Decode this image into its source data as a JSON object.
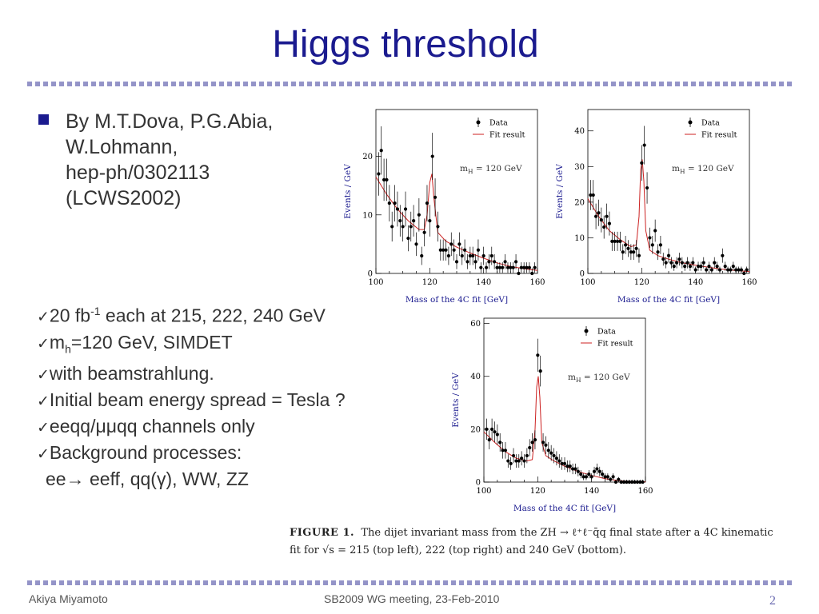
{
  "slide": {
    "title": "Higgs threshold",
    "bullet_lines": [
      "By M.T.Dova, P.G.Abia,",
      "W.Lohmann,",
      "hep-ph/0302113",
      "(LCWS2002)"
    ],
    "checklist": [
      {
        "before": "20 fb",
        "sup": "-1",
        "after": " each at 215, 222, 240 GeV"
      },
      {
        "before": "m",
        "sub": "h",
        "after": "=120 GeV, SIMDET"
      },
      {
        "text": "with beamstrahlung."
      },
      {
        "text": "Initial beam energy spread = Tesla ?"
      },
      {
        "text": "eeqq/μμqq channels only"
      },
      {
        "text": "Background processes:"
      }
    ],
    "processes_line": {
      "lead": "ee",
      "arrow": "→",
      "rest": " eeff, qq(γ), WW, ZZ"
    },
    "check_glyph": "✓"
  },
  "caption": {
    "label": "FIGURE 1.",
    "line1_rest": "The dijet invariant mass from the ZH → ℓ⁺ℓ⁻q̄q final state after a 4C kinematic",
    "line2": "fit for √s = 215 (top left), 222 (top right) and 240 GeV (bottom)."
  },
  "footer": {
    "author": "Akiya Miyamoto",
    "meeting": "SB2009 WG meeting, 23-Feb-2010",
    "page": "2"
  },
  "colors": {
    "title": "#1b1b8f",
    "axis_label": "#1b1b8f",
    "fit": "#cc2222",
    "dots": "#9494c8"
  },
  "chart_data": [
    {
      "type": "scatter",
      "xlabel": "Mass of the 4C fit  [GeV]",
      "ylabel": "Events / GeV",
      "xlim": [
        100,
        160
      ],
      "ylim": [
        0,
        28
      ],
      "xticks": [
        100,
        120,
        140,
        160
      ],
      "yticks": [
        0,
        10,
        20
      ],
      "annotation": "m_H = 120 GeV",
      "legend": [
        "Data",
        "Fit result"
      ],
      "series": [
        {
          "name": "Data",
          "x": [
            101,
            102,
            103,
            104,
            105,
            106,
            107,
            108,
            109,
            110,
            111,
            112,
            113,
            114,
            115,
            116,
            117,
            118,
            119,
            120,
            121,
            122,
            123,
            124,
            125,
            126,
            127,
            128,
            129,
            130,
            131,
            132,
            133,
            134,
            135,
            136,
            137,
            138,
            139,
            140,
            141,
            142,
            143,
            144,
            145,
            146,
            147,
            148,
            149,
            150,
            151,
            152,
            153,
            154,
            155,
            156,
            157,
            158,
            159
          ],
          "y": [
            17,
            21,
            16,
            16,
            12,
            8,
            12,
            11,
            9,
            8,
            11,
            6,
            8,
            9,
            5,
            10,
            3,
            7,
            12,
            9,
            20,
            13,
            8,
            4,
            4,
            4,
            3,
            5,
            4,
            2,
            5,
            3,
            4,
            2,
            3,
            3,
            2,
            4,
            1,
            3,
            1,
            2,
            3,
            2,
            1,
            1,
            1,
            2,
            1,
            1,
            1,
            2,
            0,
            1,
            1,
            1,
            1,
            0,
            1
          ]
        },
        {
          "name": "Fit result",
          "x": [
            100,
            104,
            108,
            112,
            116,
            118,
            119,
            120,
            120.8,
            121.5,
            123,
            126,
            130,
            135,
            140,
            145,
            150,
            155,
            160
          ],
          "y": [
            16.5,
            13.5,
            11,
            9,
            7.5,
            7.5,
            10,
            15.5,
            17,
            13,
            7,
            5.5,
            4.5,
            3.5,
            2.6,
            1.8,
            1.2,
            0.8,
            0.5
          ]
        }
      ]
    },
    {
      "type": "scatter",
      "xlabel": "Mass of the 4C fit  [GeV]",
      "ylabel": "Events / GeV",
      "xlim": [
        100,
        160
      ],
      "ylim": [
        0,
        46
      ],
      "xticks": [
        100,
        120,
        140,
        160
      ],
      "yticks": [
        0,
        10,
        20,
        30,
        40
      ],
      "annotation": "m_H = 120 GeV",
      "legend": [
        "Data",
        "Fit result"
      ],
      "series": [
        {
          "name": "Data",
          "x": [
            101,
            102,
            103,
            104,
            105,
            106,
            107,
            108,
            109,
            110,
            111,
            112,
            113,
            114,
            115,
            116,
            117,
            118,
            119,
            120,
            121,
            122,
            123,
            124,
            125,
            126,
            127,
            128,
            129,
            130,
            131,
            132,
            133,
            134,
            135,
            136,
            137,
            138,
            139,
            140,
            141,
            142,
            143,
            144,
            145,
            146,
            147,
            148,
            149,
            150,
            151,
            152,
            153,
            154,
            155,
            156,
            157,
            158,
            159
          ],
          "y": [
            22,
            22,
            16,
            17,
            15,
            13,
            16,
            14,
            9,
            9,
            9,
            9,
            6,
            8,
            7,
            6,
            6,
            7,
            5,
            31,
            36,
            24,
            10,
            8,
            12,
            6,
            8,
            4,
            3,
            5,
            3,
            2,
            3,
            4,
            3,
            2,
            3,
            2,
            3,
            1,
            2,
            2,
            3,
            1,
            2,
            1,
            3,
            2,
            1,
            5,
            2,
            1,
            1,
            2,
            1,
            1,
            1,
            0,
            1
          ]
        },
        {
          "name": "Fit result",
          "x": [
            100,
            104,
            108,
            112,
            116,
            118,
            119,
            119.6,
            120.2,
            120.8,
            121.5,
            123,
            126,
            130,
            135,
            140,
            145,
            150,
            155,
            160
          ],
          "y": [
            21,
            16,
            12,
            9.5,
            7.5,
            8,
            16,
            29,
            32,
            26,
            12,
            6.5,
            5,
            4,
            3,
            2.3,
            1.7,
            1.2,
            0.8,
            0.5
          ]
        }
      ]
    },
    {
      "type": "scatter",
      "xlabel": "Mass of the 4C fit  [GeV]",
      "ylabel": "Events / GeV",
      "xlim": [
        100,
        160
      ],
      "ylim": [
        0,
        62
      ],
      "xticks": [
        100,
        120,
        140,
        160
      ],
      "yticks": [
        0,
        20,
        40,
        60
      ],
      "annotation": "m_H = 120 GeV",
      "legend": [
        "Data",
        "Fit result"
      ],
      "series": [
        {
          "name": "Data",
          "x": [
            101,
            102,
            103,
            104,
            105,
            106,
            107,
            108,
            109,
            110,
            111,
            112,
            113,
            114,
            115,
            116,
            117,
            118,
            119,
            120,
            121,
            122,
            123,
            124,
            125,
            126,
            127,
            128,
            129,
            130,
            131,
            132,
            133,
            134,
            135,
            136,
            137,
            138,
            139,
            140,
            141,
            142,
            143,
            144,
            145,
            146,
            147,
            148,
            149,
            150,
            151,
            152,
            153,
            154,
            155,
            156,
            157,
            158,
            159
          ],
          "y": [
            20,
            16,
            20,
            19,
            18,
            15,
            12,
            12,
            8,
            7,
            10,
            8,
            8,
            9,
            8,
            10,
            13,
            15,
            16,
            48,
            42,
            15,
            14,
            12,
            11,
            10,
            9,
            8,
            7,
            7,
            6,
            6,
            5,
            5,
            4,
            3,
            2,
            2,
            3,
            2,
            4,
            5,
            4,
            3,
            2,
            2,
            1,
            2,
            0,
            1,
            0,
            0,
            0,
            0,
            0,
            0,
            0,
            0,
            0
          ]
        },
        {
          "name": "Fit result",
          "x": [
            100,
            104,
            108,
            112,
            116,
            118,
            119,
            119.6,
            120.2,
            120.8,
            121.5,
            123,
            126,
            130,
            135,
            140,
            145,
            150,
            155,
            160
          ],
          "y": [
            19,
            15,
            11.5,
            9,
            8,
            8.5,
            20,
            36,
            40,
            32,
            15,
            10,
            8,
            6,
            4,
            2.5,
            1.3,
            0.5,
            0.2,
            0.1
          ]
        }
      ]
    }
  ]
}
